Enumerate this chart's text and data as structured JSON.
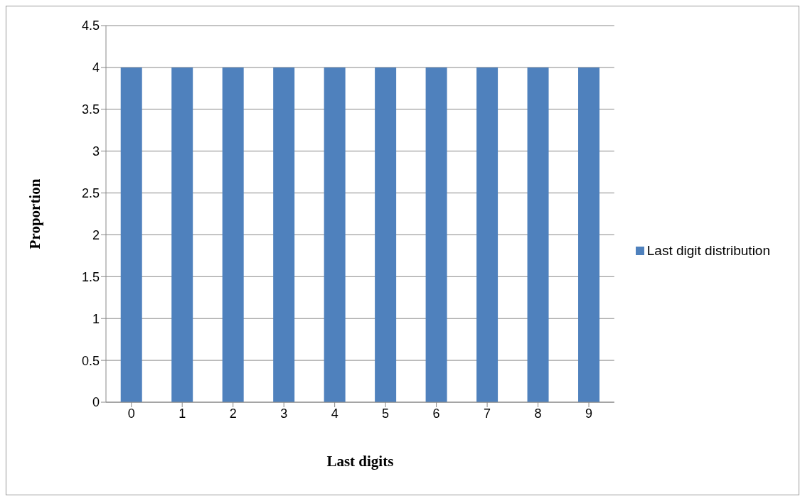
{
  "chart_data": {
    "type": "bar",
    "xlabel": "Last digits",
    "ylabel": "Proportion",
    "categories": [
      "0",
      "1",
      "2",
      "3",
      "4",
      "5",
      "6",
      "7",
      "8",
      "9"
    ],
    "series": [
      {
        "name": "Last digit distribution",
        "color": "#4f81bd",
        "values": [
          4,
          4,
          4,
          4,
          4,
          4,
          4,
          4,
          4,
          4
        ]
      }
    ],
    "ylim": [
      0,
      4.5
    ],
    "yticks": [
      0,
      0.5,
      1,
      1.5,
      2,
      2.5,
      3,
      3.5,
      4,
      4.5
    ],
    "grid": "y",
    "legend": "right"
  }
}
